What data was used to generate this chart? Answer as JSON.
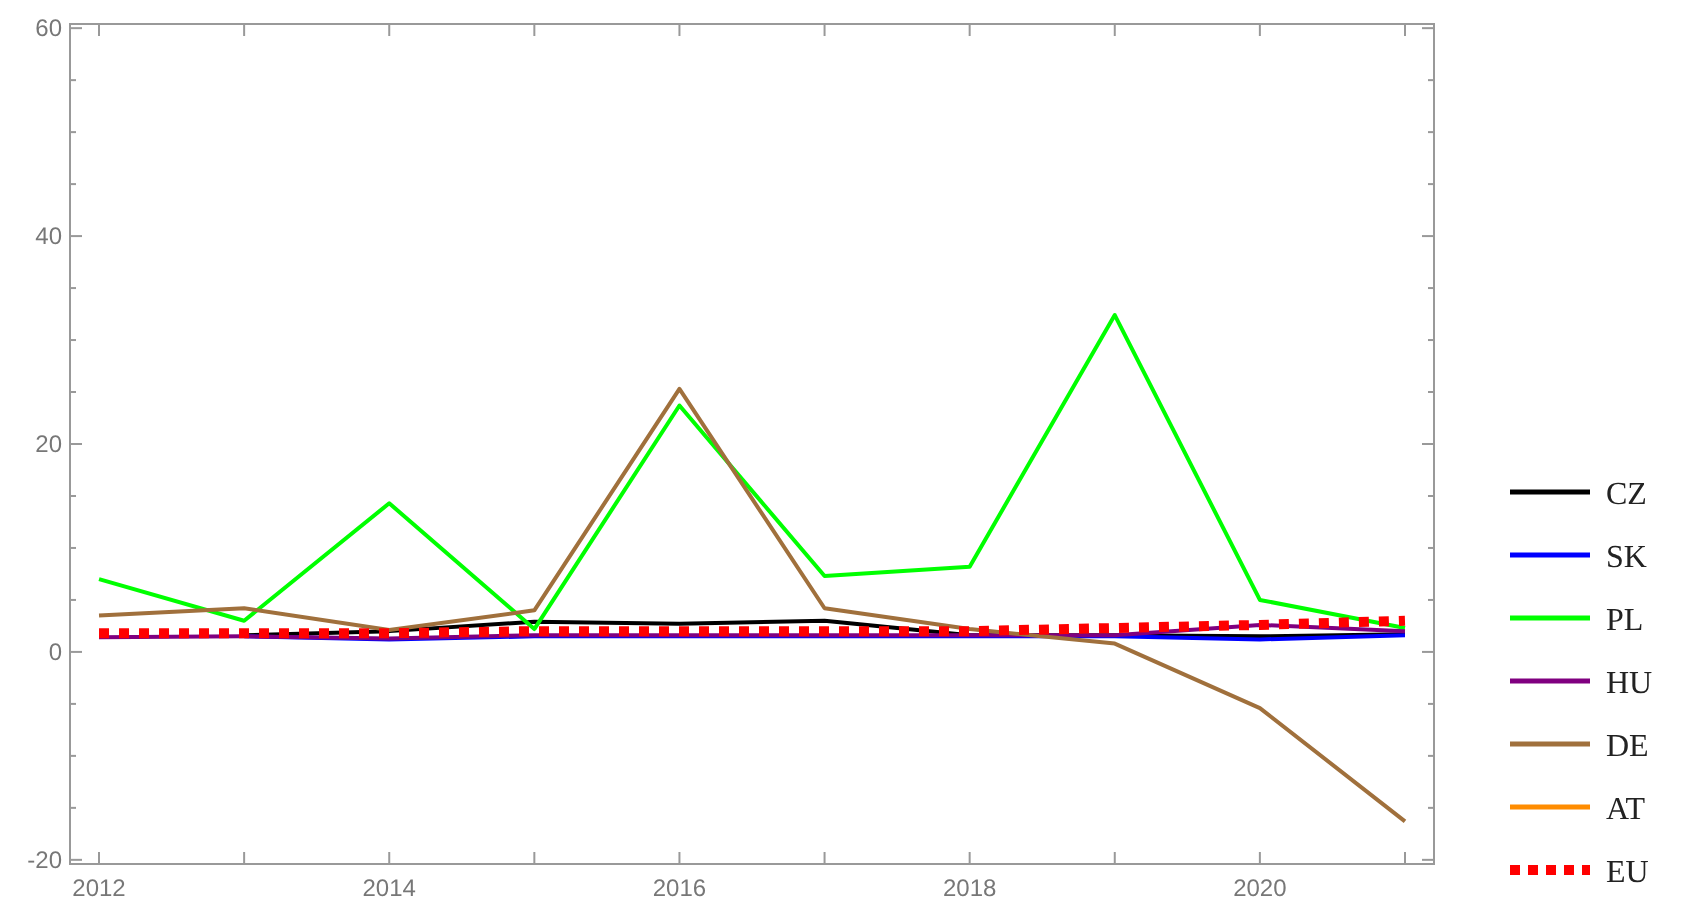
{
  "chart_data": {
    "type": "line",
    "x": [
      2012,
      2013,
      2014,
      2015,
      2016,
      2017,
      2018,
      2019,
      2020,
      2021
    ],
    "xlim": [
      2011.8,
      2021.2
    ],
    "xticks": [
      2012,
      {
        "value": 2013,
        "label": null
      },
      2014,
      {
        "value": 2015,
        "label": null
      },
      2016,
      {
        "value": 2017,
        "label": null
      },
      2018,
      {
        "value": 2019,
        "label": null
      },
      2020,
      {
        "value": 2021,
        "label": null
      }
    ],
    "ylim": [
      -20.4,
      60.4
    ],
    "yticks": [
      -20,
      0,
      20,
      40,
      60
    ],
    "legend": "right",
    "grid": false,
    "series": [
      {
        "name": "CZ",
        "color": "#000000",
        "values": [
          null,
          1.6,
          2.0,
          2.9,
          2.7,
          3.0,
          1.6,
          1.6,
          1.5,
          1.7
        ]
      },
      {
        "name": "SK",
        "color": "#0000ff",
        "values": [
          null,
          1.5,
          1.2,
          1.5,
          1.5,
          1.5,
          1.5,
          1.5,
          1.2,
          1.6
        ]
      },
      {
        "name": "PL",
        "color": "#00ff00",
        "values": [
          7.0,
          3.0,
          14.3,
          2.2,
          23.7,
          7.3,
          8.2,
          32.4,
          5.0,
          2.3
        ]
      },
      {
        "name": "HU",
        "color": "#800080",
        "values": [
          1.4,
          1.5,
          1.3,
          1.6,
          1.6,
          1.6,
          1.6,
          1.6,
          2.6,
          2.0
        ]
      },
      {
        "name": "DE",
        "color": "#a0703c",
        "values": [
          3.5,
          4.2,
          2.1,
          4.0,
          25.3,
          4.2,
          2.2,
          0.8,
          -5.4,
          -16.3
        ]
      },
      {
        "name": "AT",
        "color": "#ff8c00",
        "values": [
          null,
          null,
          null,
          null,
          null,
          null,
          null,
          null,
          null,
          null
        ]
      },
      {
        "name": "EU",
        "color": "#ff0000",
        "line_style": "dotted",
        "values": [
          1.8,
          1.8,
          1.8,
          2.0,
          2.0,
          2.0,
          2.0,
          2.3,
          2.6,
          3.0
        ]
      }
    ]
  }
}
